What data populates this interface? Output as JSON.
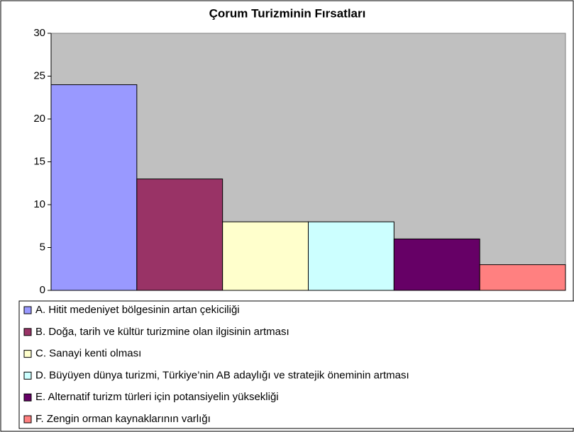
{
  "chart_data": {
    "type": "bar",
    "title": "Çorum Turizminin Fırsatları",
    "series": [
      {
        "name": "A. Hitit medeniyet bölgesinin artan çekiciliği",
        "color": "#9999ff",
        "values": [
          24
        ]
      },
      {
        "name": "B. Doğa, tarih ve kültür turizmine olan ilgisinin artması",
        "color": "#993366",
        "values": [
          13
        ]
      },
      {
        "name": "C. Sanayi kenti olması",
        "color": "#ffffcc",
        "values": [
          8
        ]
      },
      {
        "name": "D. Büyüyen dünya turizmi, Türkiye’nin  AB adaylığı ve stratejik öneminin artması",
        "color": "#ccffff",
        "values": [
          8
        ]
      },
      {
        "name": "E. Alternatif turizm türleri için potansiyelin yüksekliği",
        "color": "#660066",
        "values": [
          6
        ]
      },
      {
        "name": "F. Zengin orman kaynaklarının varlığı",
        "color": "#ff8080",
        "values": [
          3
        ]
      }
    ],
    "ylim": [
      0,
      30
    ],
    "yticks": [
      0,
      5,
      10,
      15,
      20,
      25,
      30
    ],
    "plot_background": "#c0c0c0",
    "legend": "bottom"
  }
}
